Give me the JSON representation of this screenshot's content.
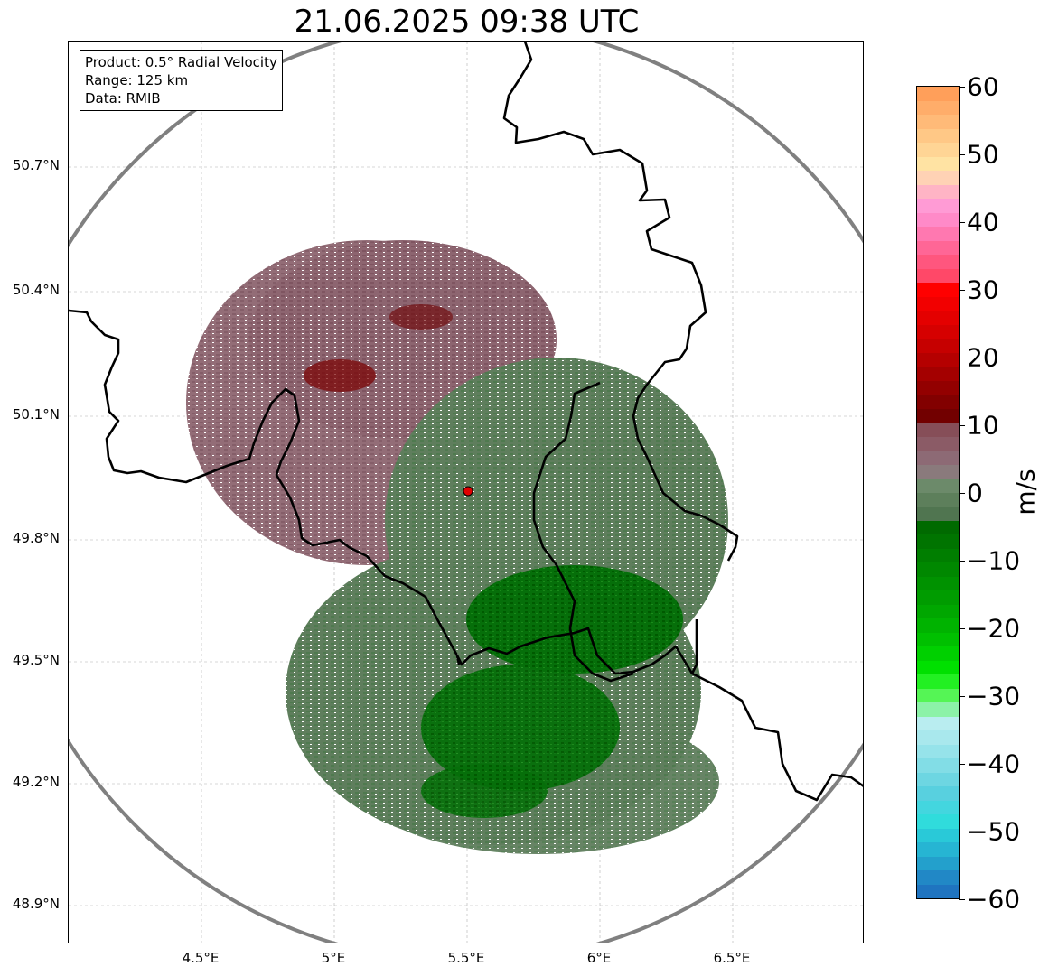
{
  "title": "21.06.2025 09:38 UTC",
  "info_box": {
    "product": "Product: 0.5° Radial Velocity",
    "range": "Range: 125 km",
    "data": "Data: RMIB"
  },
  "lat_ticks": [
    "50.7°N",
    "50.4°N",
    "50.1°N",
    "49.8°N",
    "49.5°N",
    "49.2°N",
    "48.9°N"
  ],
  "lon_ticks": [
    "4.5°E",
    "5°E",
    "5.5°E",
    "6°E",
    "6.5°E"
  ],
  "colorbar": {
    "unit": "m/s",
    "ticks": [
      "60",
      "50",
      "40",
      "30",
      "20",
      "10",
      "0",
      "−10",
      "−20",
      "−30",
      "−40",
      "−50",
      "−60"
    ],
    "range": [
      -60,
      60
    ]
  },
  "colors": {
    "range_ring": "#808080",
    "borders": "#000000",
    "radar_site": "#e00000",
    "inbound_dark": "#006400",
    "outbound_dark": "#7a0000"
  }
}
